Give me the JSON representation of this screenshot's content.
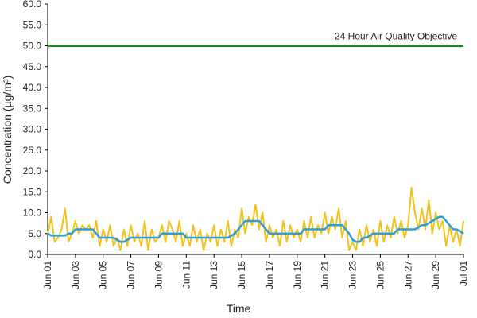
{
  "chart_data": {
    "type": "line",
    "x_label": "Time",
    "y_label": "Concentration (µg/m³)",
    "xlim": [
      0,
      30
    ],
    "xticks": [
      {
        "value": 0,
        "label": "Jun 01"
      },
      {
        "value": 2,
        "label": "Jun 03"
      },
      {
        "value": 4,
        "label": "Jun 05"
      },
      {
        "value": 6,
        "label": "Jun 07"
      },
      {
        "value": 8,
        "label": "Jun 09"
      },
      {
        "value": 10,
        "label": "Jun 11"
      },
      {
        "value": 12,
        "label": "Jun 13"
      },
      {
        "value": 14,
        "label": "Jun 15"
      },
      {
        "value": 16,
        "label": "Jun 17"
      },
      {
        "value": 18,
        "label": "Jun 19"
      },
      {
        "value": 20,
        "label": "Jun 21"
      },
      {
        "value": 22,
        "label": "Jun 23"
      },
      {
        "value": 24,
        "label": "Jun 25"
      },
      {
        "value": 26,
        "label": "Jun 27"
      },
      {
        "value": 28,
        "label": "Jun 29"
      },
      {
        "value": 30,
        "label": "Jul 01"
      }
    ],
    "ylim": [
      0,
      60
    ],
    "yticks": [
      {
        "value": 0,
        "label": "0.0"
      },
      {
        "value": 5,
        "label": "5.0"
      },
      {
        "value": 10,
        "label": "10.0"
      },
      {
        "value": 15,
        "label": "15.0"
      },
      {
        "value": 20,
        "label": "20.0"
      },
      {
        "value": 25,
        "label": "25.0"
      },
      {
        "value": 30,
        "label": "30.0"
      },
      {
        "value": 35,
        "label": "35.0"
      },
      {
        "value": 40,
        "label": "40.0"
      },
      {
        "value": 45,
        "label": "45.0"
      },
      {
        "value": 50,
        "label": "50.0"
      },
      {
        "value": 55,
        "label": "55.0"
      },
      {
        "value": 60,
        "label": "60.0"
      }
    ],
    "reference_lines": [
      {
        "value": 50,
        "label": "24 Hour Air Quality Objective",
        "color": "#1e8a1e"
      }
    ],
    "x": [
      0,
      0.25,
      0.5,
      0.75,
      1,
      1.25,
      1.5,
      1.75,
      2,
      2.25,
      2.5,
      2.75,
      3,
      3.25,
      3.5,
      3.75,
      4,
      4.25,
      4.5,
      4.75,
      5,
      5.25,
      5.5,
      5.75,
      6,
      6.25,
      6.5,
      6.75,
      7,
      7.25,
      7.5,
      7.75,
      8,
      8.25,
      8.5,
      8.75,
      9,
      9.25,
      9.5,
      9.75,
      10,
      10.25,
      10.5,
      10.75,
      11,
      11.25,
      11.5,
      11.75,
      12,
      12.25,
      12.5,
      12.75,
      13,
      13.25,
      13.5,
      13.75,
      14,
      14.25,
      14.5,
      14.75,
      15,
      15.25,
      15.5,
      15.75,
      16,
      16.25,
      16.5,
      16.75,
      17,
      17.25,
      17.5,
      17.75,
      18,
      18.25,
      18.5,
      18.75,
      19,
      19.25,
      19.5,
      19.75,
      20,
      20.25,
      20.5,
      20.75,
      21,
      21.25,
      21.5,
      21.75,
      22,
      22.25,
      22.5,
      22.75,
      23,
      23.25,
      23.5,
      23.75,
      24,
      24.25,
      24.5,
      24.75,
      25,
      25.25,
      25.5,
      25.75,
      26,
      26.25,
      26.5,
      26.75,
      27,
      27.25,
      27.5,
      27.75,
      28,
      28.25,
      28.5,
      28.75,
      29,
      29.25,
      29.5,
      29.75,
      30
    ],
    "series": [
      {
        "color": "#f2c21b",
        "width": 2,
        "values": [
          5,
          9,
          3,
          4,
          6,
          11,
          3,
          5,
          8,
          5,
          7,
          6,
          7,
          4,
          8,
          2,
          6,
          3,
          7,
          2,
          4,
          1,
          6,
          2,
          7,
          3,
          5,
          2,
          8,
          1,
          6,
          3,
          4,
          7,
          3,
          8,
          6,
          3,
          8,
          2,
          5,
          2,
          7,
          3,
          6,
          1,
          5,
          3,
          7,
          2,
          6,
          3,
          8,
          2,
          6,
          4,
          11,
          5,
          9,
          7,
          12,
          6,
          10,
          3,
          7,
          4,
          6,
          2,
          8,
          3,
          7,
          4,
          6,
          3,
          8,
          4,
          9,
          4,
          7,
          5,
          10,
          5,
          9,
          6,
          11,
          4,
          8,
          1,
          3,
          1,
          6,
          2,
          7,
          3,
          6,
          2,
          8,
          3,
          7,
          4,
          9,
          5,
          8,
          4,
          7,
          16,
          10,
          6,
          11,
          6,
          13,
          5,
          10,
          6,
          8,
          2,
          7,
          3,
          6,
          2,
          8
        ]
      },
      {
        "color": "#2b9fe0",
        "width": 2.5,
        "values": [
          5,
          4.5,
          4.5,
          4.5,
          4.5,
          4.5,
          5,
          5,
          6,
          6,
          6,
          6,
          6,
          6,
          5,
          4,
          4,
          4,
          4,
          4,
          3.5,
          3,
          3,
          3.5,
          4,
          4,
          4,
          4,
          4,
          4,
          4,
          4,
          4,
          5,
          5,
          5,
          5,
          5,
          5,
          5,
          4,
          4,
          4,
          4,
          4,
          4,
          4,
          4,
          4,
          4,
          4,
          4,
          4,
          4.5,
          5,
          6,
          7,
          8,
          8,
          8,
          8,
          8,
          7,
          6,
          5,
          5,
          5,
          5,
          5,
          5,
          5,
          5,
          5,
          5,
          6,
          6,
          6,
          6,
          6,
          6,
          6,
          7,
          7,
          7,
          7,
          7,
          6,
          5,
          3.5,
          3,
          3,
          4,
          4,
          4.5,
          5,
          5,
          5,
          5,
          5,
          5,
          5,
          6,
          6,
          6,
          6,
          6,
          6,
          6.5,
          7,
          7,
          7.5,
          8,
          8.5,
          9,
          9,
          8,
          7,
          6,
          6,
          5.5,
          5
        ]
      }
    ]
  }
}
